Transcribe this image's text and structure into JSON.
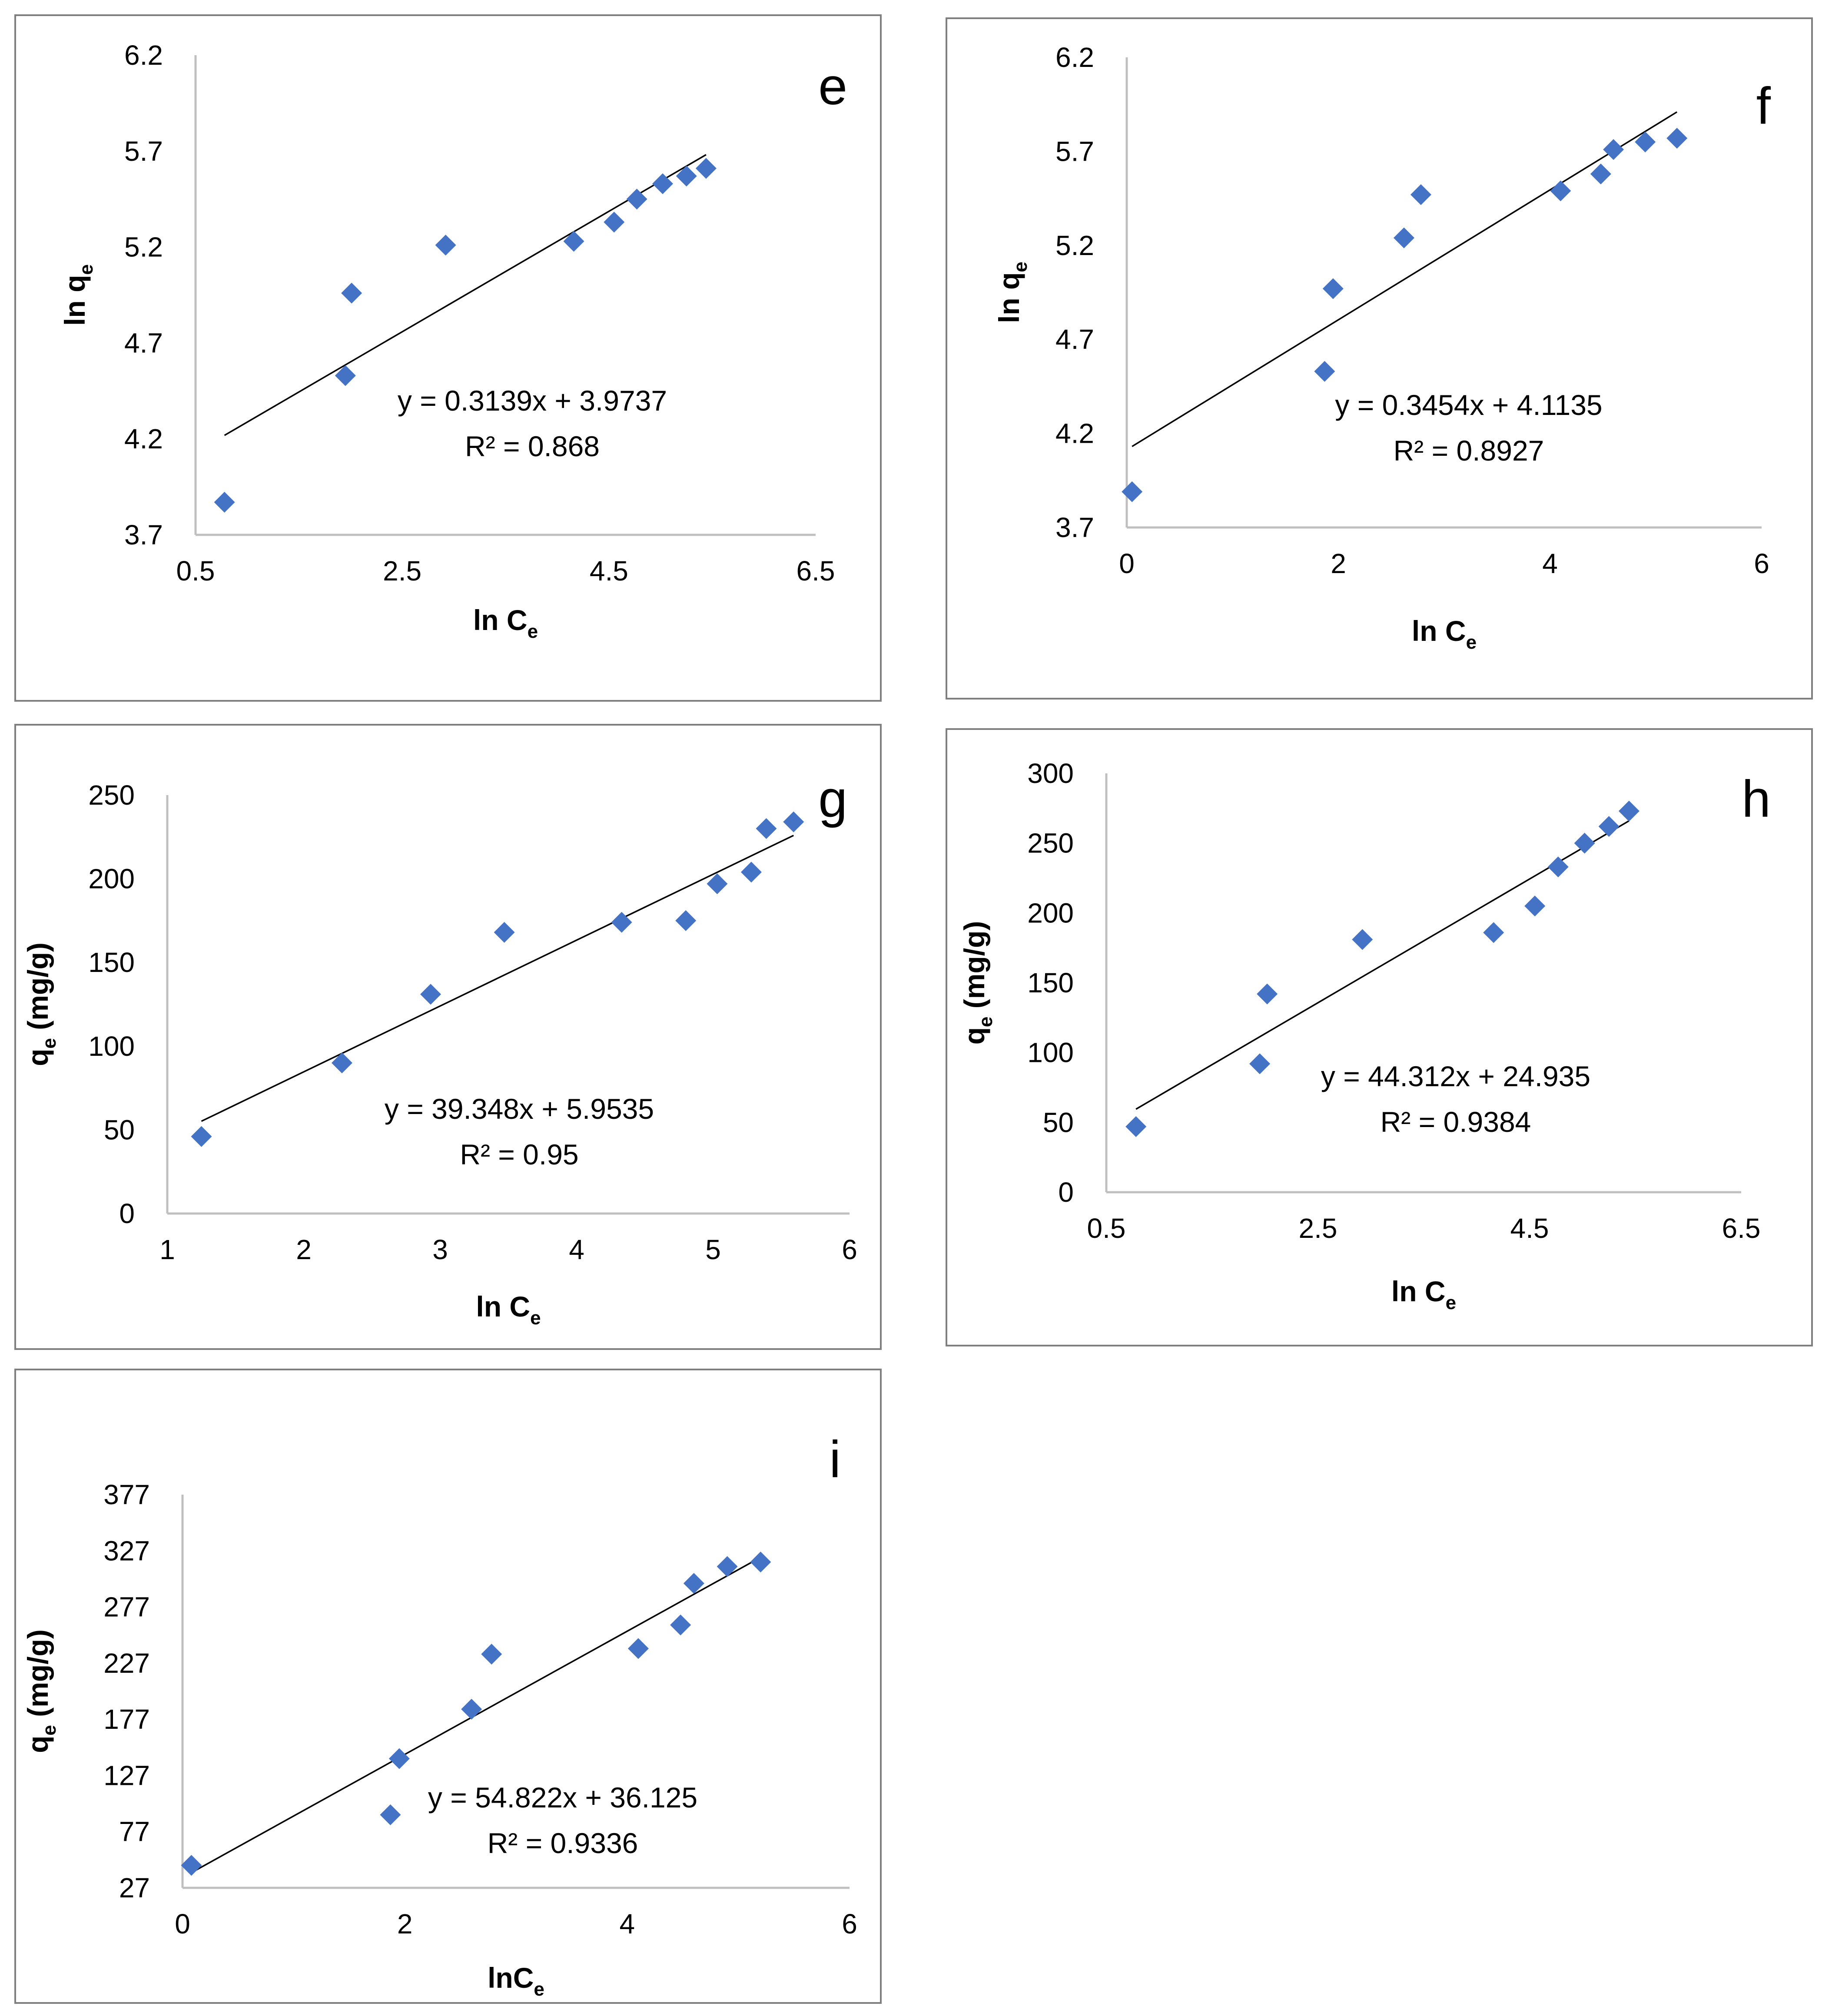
{
  "marker_color": "#4472C4",
  "chart_data": [
    {
      "type": "scatter",
      "panel_label": "e",
      "xlabel": "ln C",
      "xlabel_sub": "e",
      "ylabel": "ln q",
      "ylabel_sub": "e",
      "ylabel_suffix": "",
      "xlim": [
        0.5,
        6.5
      ],
      "ylim": [
        3.7,
        6.2
      ],
      "xticks": [
        0.5,
        2.5,
        4.5,
        6.5
      ],
      "xtick_labels": [
        "0.5",
        "2.5",
        "4.5",
        "6.5"
      ],
      "yticks": [
        3.7,
        4.2,
        4.7,
        5.2,
        5.7,
        6.2
      ],
      "ytick_labels": [
        "3.7",
        "4.2",
        "4.7",
        "5.2",
        "5.7",
        "6.2"
      ],
      "x": [
        0.78,
        1.95,
        2.01,
        2.92,
        4.16,
        4.55,
        4.77,
        5.02,
        5.25,
        5.44
      ],
      "y": [
        3.87,
        4.53,
        4.96,
        5.21,
        5.23,
        5.33,
        5.45,
        5.53,
        5.57,
        5.61
      ],
      "trendline": {
        "slope": 0.3139,
        "intercept": 3.9737,
        "x_range": [
          0.78,
          5.44
        ]
      },
      "equation": "y = 0.3139x + 3.9737",
      "r_squared": "R² = 0.868"
    },
    {
      "type": "scatter",
      "panel_label": "f",
      "xlabel": "ln C",
      "xlabel_sub": "e",
      "ylabel": "ln q",
      "ylabel_sub": "e",
      "ylabel_suffix": "",
      "xlim": [
        0,
        6
      ],
      "ylim": [
        3.7,
        6.2
      ],
      "xticks": [
        0,
        2,
        4,
        6
      ],
      "xtick_labels": [
        "0",
        "2",
        "4",
        "6"
      ],
      "yticks": [
        3.7,
        4.2,
        4.7,
        5.2,
        5.7,
        6.2
      ],
      "ytick_labels": [
        "3.7",
        "4.2",
        "4.7",
        "5.2",
        "5.7",
        "6.2"
      ],
      "x": [
        0.05,
        1.87,
        1.95,
        2.62,
        2.78,
        4.1,
        4.48,
        4.6,
        4.9,
        5.2
      ],
      "y": [
        3.89,
        4.53,
        4.97,
        5.24,
        5.47,
        5.49,
        5.58,
        5.71,
        5.75,
        5.77
      ],
      "trendline": {
        "slope": 0.3454,
        "intercept": 4.1135,
        "x_range": [
          0.05,
          5.2
        ]
      },
      "equation": "y = 0.3454x + 4.1135",
      "r_squared": "R² = 0.8927"
    },
    {
      "type": "scatter",
      "panel_label": "g",
      "xlabel": "ln C",
      "xlabel_sub": "e",
      "ylabel": "q",
      "ylabel_sub": "e",
      "ylabel_suffix": " (mg/g)",
      "xlim": [
        1,
        6
      ],
      "ylim": [
        0,
        250
      ],
      "xticks": [
        1,
        2,
        3,
        4,
        5,
        6
      ],
      "xtick_labels": [
        "1",
        "2",
        "3",
        "4",
        "5",
        "6"
      ],
      "yticks": [
        0,
        50,
        100,
        150,
        200,
        250
      ],
      "ytick_labels": [
        "0",
        "50",
        "100",
        "150",
        "200",
        "250"
      ],
      "x": [
        1.25,
        2.28,
        2.93,
        3.47,
        4.33,
        4.8,
        5.03,
        5.28,
        5.39,
        5.59
      ],
      "y": [
        46,
        90,
        131,
        168,
        174,
        175,
        197,
        204,
        230,
        234
      ],
      "trendline": {
        "slope": 39.348,
        "intercept": 5.9535,
        "x_range": [
          1.25,
          5.59
        ]
      },
      "equation": "y = 39.348x + 5.9535",
      "r_squared": "R² = 0.95"
    },
    {
      "type": "scatter",
      "panel_label": "h",
      "xlabel": "ln C",
      "xlabel_sub": "e",
      "ylabel": "q",
      "ylabel_sub": "e",
      "ylabel_suffix": " (mg/g)",
      "xlim": [
        0.5,
        6.5
      ],
      "ylim": [
        0,
        300
      ],
      "xticks": [
        0.5,
        2.5,
        4.5,
        6.5
      ],
      "xtick_labels": [
        "0.5",
        "2.5",
        "4.5",
        "6.5"
      ],
      "yticks": [
        0,
        50,
        100,
        150,
        200,
        250,
        300
      ],
      "ytick_labels": [
        "0",
        "50",
        "100",
        "150",
        "200",
        "250",
        "300"
      ],
      "x": [
        0.78,
        1.95,
        2.02,
        2.92,
        4.16,
        4.55,
        4.77,
        5.02,
        5.25,
        5.44
      ],
      "y": [
        47,
        92,
        142,
        181,
        186,
        205,
        233,
        250,
        262,
        273
      ],
      "trendline": {
        "slope": 44.312,
        "intercept": 24.935,
        "x_range": [
          0.78,
          5.44
        ]
      },
      "equation": "y = 44.312x + 24.935",
      "r_squared": "R² = 0.9384"
    },
    {
      "type": "scatter",
      "panel_label": "i",
      "xlabel": "lnC",
      "xlabel_sub": "e",
      "ylabel": "q",
      "ylabel_sub": "e",
      "ylabel_suffix": " (mg/g)",
      "xlim": [
        0,
        6
      ],
      "ylim": [
        27,
        377
      ],
      "xticks": [
        0,
        2,
        4,
        6
      ],
      "xtick_labels": [
        "0",
        "2",
        "4",
        "6"
      ],
      "yticks": [
        27,
        77,
        127,
        177,
        227,
        277,
        327,
        377
      ],
      "ytick_labels": [
        "27",
        "77",
        "127",
        "177",
        "227",
        "277",
        "327",
        "377"
      ],
      "x": [
        0.08,
        1.87,
        1.95,
        2.6,
        2.78,
        4.1,
        4.48,
        4.6,
        4.9,
        5.2
      ],
      "y": [
        47,
        92,
        142,
        186,
        235,
        240,
        261,
        298,
        313,
        317
      ],
      "trendline": {
        "slope": 54.822,
        "intercept": 36.125,
        "x_range": [
          0.08,
          5.2
        ]
      },
      "equation": "y = 54.822x + 36.125",
      "r_squared": "R² = 0.9336"
    }
  ]
}
